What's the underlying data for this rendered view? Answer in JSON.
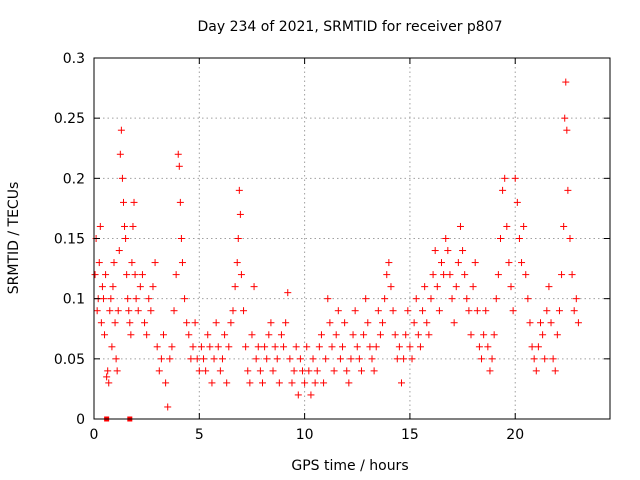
{
  "chart_data": {
    "type": "scatter",
    "title": "Day 234 of 2021, SRMTID for receiver p807",
    "xlabel": "GPS time / hours",
    "ylabel": "SRMTID / TECUs",
    "xlim": [
      0,
      24.5
    ],
    "ylim": [
      0,
      0.3
    ],
    "x_ticks": [
      0,
      5,
      10,
      15,
      20
    ],
    "x_tick_labels": [
      "0",
      "5",
      "10",
      "15",
      "20"
    ],
    "y_ticks": [
      0,
      0.05,
      0.1,
      0.15,
      0.2,
      0.25,
      0.3
    ],
    "y_tick_labels": [
      "0",
      "0.05",
      "0.1",
      "0.15",
      "0.2",
      "0.25",
      "0.3"
    ],
    "grid": true,
    "marker": "plus",
    "color": "#ff0000",
    "series": [
      {
        "name": "SRMTID",
        "points": [
          [
            0.05,
            0.12
          ],
          [
            0.1,
            0.15
          ],
          [
            0.15,
            0.09
          ],
          [
            0.2,
            0.1
          ],
          [
            0.25,
            0.13
          ],
          [
            0.3,
            0.16
          ],
          [
            0.35,
            0.08
          ],
          [
            0.4,
            0.11
          ],
          [
            0.45,
            0.1
          ],
          [
            0.5,
            0.07
          ],
          [
            0.55,
            0.12
          ],
          [
            0.6,
            0.035
          ],
          [
            0.65,
            0.04
          ],
          [
            0.7,
            0.03
          ],
          [
            0.75,
            0.09
          ],
          [
            0.8,
            0.1
          ],
          [
            0.85,
            0.06
          ],
          [
            0.9,
            0.11
          ],
          [
            0.95,
            0.13
          ],
          [
            1.0,
            0.08
          ],
          [
            1.05,
            0.05
          ],
          [
            1.1,
            0.04
          ],
          [
            1.15,
            0.09
          ],
          [
            1.2,
            0.14
          ],
          [
            1.25,
            0.22
          ],
          [
            1.3,
            0.24
          ],
          [
            1.35,
            0.2
          ],
          [
            1.4,
            0.18
          ],
          [
            1.45,
            0.16
          ],
          [
            1.5,
            0.15
          ],
          [
            1.55,
            0.12
          ],
          [
            1.6,
            0.1
          ],
          [
            1.65,
            0.09
          ],
          [
            1.7,
            0.08
          ],
          [
            1.75,
            0.07
          ],
          [
            1.8,
            0.13
          ],
          [
            1.85,
            0.16
          ],
          [
            1.9,
            0.18
          ],
          [
            1.95,
            0.12
          ],
          [
            2.0,
            0.1
          ],
          [
            2.1,
            0.09
          ],
          [
            2.2,
            0.11
          ],
          [
            2.3,
            0.12
          ],
          [
            2.4,
            0.08
          ],
          [
            2.5,
            0.07
          ],
          [
            2.6,
            0.1
          ],
          [
            2.7,
            0.09
          ],
          [
            2.8,
            0.11
          ],
          [
            2.9,
            0.13
          ],
          [
            3.0,
            0.06
          ],
          [
            3.1,
            0.04
          ],
          [
            3.2,
            0.05
          ],
          [
            3.3,
            0.07
          ],
          [
            3.4,
            0.03
          ],
          [
            3.5,
            0.01
          ],
          [
            3.6,
            0.05
          ],
          [
            3.7,
            0.06
          ],
          [
            3.8,
            0.09
          ],
          [
            3.9,
            0.12
          ],
          [
            4.0,
            0.22
          ],
          [
            4.05,
            0.21
          ],
          [
            4.1,
            0.18
          ],
          [
            4.15,
            0.15
          ],
          [
            4.2,
            0.13
          ],
          [
            4.3,
            0.1
          ],
          [
            4.4,
            0.08
          ],
          [
            4.5,
            0.07
          ],
          [
            4.6,
            0.05
          ],
          [
            4.7,
            0.06
          ],
          [
            4.8,
            0.08
          ],
          [
            4.9,
            0.05
          ],
          [
            5.0,
            0.04
          ],
          [
            5.1,
            0.06
          ],
          [
            5.2,
            0.05
          ],
          [
            5.3,
            0.04
          ],
          [
            5.4,
            0.07
          ],
          [
            5.5,
            0.06
          ],
          [
            5.6,
            0.03
          ],
          [
            5.7,
            0.05
          ],
          [
            5.8,
            0.08
          ],
          [
            5.9,
            0.06
          ],
          [
            6.0,
            0.04
          ],
          [
            6.1,
            0.05
          ],
          [
            6.2,
            0.07
          ],
          [
            6.3,
            0.03
          ],
          [
            6.4,
            0.06
          ],
          [
            6.5,
            0.08
          ],
          [
            6.6,
            0.09
          ],
          [
            6.7,
            0.11
          ],
          [
            6.8,
            0.13
          ],
          [
            6.85,
            0.15
          ],
          [
            6.9,
            0.19
          ],
          [
            6.95,
            0.17
          ],
          [
            7.0,
            0.12
          ],
          [
            7.1,
            0.09
          ],
          [
            7.2,
            0.06
          ],
          [
            7.3,
            0.04
          ],
          [
            7.4,
            0.03
          ],
          [
            7.5,
            0.07
          ],
          [
            7.6,
            0.11
          ],
          [
            7.7,
            0.05
          ],
          [
            7.8,
            0.06
          ],
          [
            7.9,
            0.04
          ],
          [
            8.0,
            0.03
          ],
          [
            8.1,
            0.06
          ],
          [
            8.2,
            0.05
          ],
          [
            8.3,
            0.07
          ],
          [
            8.4,
            0.08
          ],
          [
            8.5,
            0.04
          ],
          [
            8.6,
            0.06
          ],
          [
            8.7,
            0.05
          ],
          [
            8.8,
            0.03
          ],
          [
            8.9,
            0.07
          ],
          [
            9.0,
            0.06
          ],
          [
            9.1,
            0.08
          ],
          [
            9.2,
            0.105
          ],
          [
            9.3,
            0.05
          ],
          [
            9.4,
            0.03
          ],
          [
            9.5,
            0.04
          ],
          [
            9.6,
            0.06
          ],
          [
            9.7,
            0.02
          ],
          [
            9.8,
            0.05
          ],
          [
            9.9,
            0.04
          ],
          [
            10.0,
            0.03
          ],
          [
            10.1,
            0.06
          ],
          [
            10.2,
            0.04
          ],
          [
            10.3,
            0.02
          ],
          [
            10.4,
            0.05
          ],
          [
            10.5,
            0.03
          ],
          [
            10.6,
            0.04
          ],
          [
            10.7,
            0.06
          ],
          [
            10.8,
            0.07
          ],
          [
            10.9,
            0.03
          ],
          [
            11.0,
            0.05
          ],
          [
            11.1,
            0.1
          ],
          [
            11.2,
            0.08
          ],
          [
            11.3,
            0.06
          ],
          [
            11.4,
            0.04
          ],
          [
            11.5,
            0.07
          ],
          [
            11.6,
            0.09
          ],
          [
            11.7,
            0.05
          ],
          [
            11.8,
            0.06
          ],
          [
            11.9,
            0.08
          ],
          [
            12.0,
            0.04
          ],
          [
            12.1,
            0.03
          ],
          [
            12.2,
            0.05
          ],
          [
            12.3,
            0.07
          ],
          [
            12.4,
            0.09
          ],
          [
            12.5,
            0.06
          ],
          [
            12.6,
            0.05
          ],
          [
            12.7,
            0.04
          ],
          [
            12.8,
            0.07
          ],
          [
            12.9,
            0.1
          ],
          [
            13.0,
            0.08
          ],
          [
            13.1,
            0.06
          ],
          [
            13.2,
            0.05
          ],
          [
            13.3,
            0.04
          ],
          [
            13.4,
            0.06
          ],
          [
            13.5,
            0.09
          ],
          [
            13.6,
            0.07
          ],
          [
            13.7,
            0.08
          ],
          [
            13.8,
            0.1
          ],
          [
            13.9,
            0.12
          ],
          [
            14.0,
            0.13
          ],
          [
            14.1,
            0.11
          ],
          [
            14.2,
            0.09
          ],
          [
            14.3,
            0.07
          ],
          [
            14.4,
            0.05
          ],
          [
            14.5,
            0.06
          ],
          [
            14.6,
            0.03
          ],
          [
            14.7,
            0.05
          ],
          [
            14.8,
            0.07
          ],
          [
            14.9,
            0.09
          ],
          [
            15.0,
            0.06
          ],
          [
            15.1,
            0.05
          ],
          [
            15.2,
            0.08
          ],
          [
            15.3,
            0.1
          ],
          [
            15.4,
            0.07
          ],
          [
            15.5,
            0.06
          ],
          [
            15.6,
            0.09
          ],
          [
            15.7,
            0.11
          ],
          [
            15.8,
            0.08
          ],
          [
            15.9,
            0.07
          ],
          [
            16.0,
            0.1
          ],
          [
            16.1,
            0.12
          ],
          [
            16.2,
            0.14
          ],
          [
            16.3,
            0.11
          ],
          [
            16.4,
            0.09
          ],
          [
            16.5,
            0.13
          ],
          [
            16.6,
            0.12
          ],
          [
            16.7,
            0.15
          ],
          [
            16.8,
            0.14
          ],
          [
            16.9,
            0.12
          ],
          [
            17.0,
            0.1
          ],
          [
            17.1,
            0.08
          ],
          [
            17.2,
            0.11
          ],
          [
            17.3,
            0.13
          ],
          [
            17.4,
            0.16
          ],
          [
            17.5,
            0.14
          ],
          [
            17.6,
            0.12
          ],
          [
            17.7,
            0.1
          ],
          [
            17.8,
            0.09
          ],
          [
            17.9,
            0.07
          ],
          [
            18.0,
            0.11
          ],
          [
            18.1,
            0.13
          ],
          [
            18.2,
            0.09
          ],
          [
            18.3,
            0.06
          ],
          [
            18.4,
            0.05
          ],
          [
            18.5,
            0.07
          ],
          [
            18.6,
            0.09
          ],
          [
            18.7,
            0.06
          ],
          [
            18.8,
            0.04
          ],
          [
            18.9,
            0.05
          ],
          [
            19.0,
            0.07
          ],
          [
            19.1,
            0.1
          ],
          [
            19.2,
            0.12
          ],
          [
            19.3,
            0.15
          ],
          [
            19.4,
            0.19
          ],
          [
            19.5,
            0.2
          ],
          [
            19.6,
            0.16
          ],
          [
            19.7,
            0.13
          ],
          [
            19.8,
            0.11
          ],
          [
            19.9,
            0.09
          ],
          [
            20.0,
            0.2
          ],
          [
            20.1,
            0.18
          ],
          [
            20.2,
            0.15
          ],
          [
            20.3,
            0.13
          ],
          [
            20.4,
            0.16
          ],
          [
            20.5,
            0.12
          ],
          [
            20.6,
            0.1
          ],
          [
            20.7,
            0.08
          ],
          [
            20.8,
            0.06
          ],
          [
            20.9,
            0.05
          ],
          [
            21.0,
            0.04
          ],
          [
            21.1,
            0.06
          ],
          [
            21.2,
            0.08
          ],
          [
            21.3,
            0.07
          ],
          [
            21.4,
            0.05
          ],
          [
            21.5,
            0.09
          ],
          [
            21.6,
            0.11
          ],
          [
            21.7,
            0.08
          ],
          [
            21.8,
            0.05
          ],
          [
            21.9,
            0.04
          ],
          [
            22.0,
            0.07
          ],
          [
            22.1,
            0.09
          ],
          [
            22.2,
            0.12
          ],
          [
            22.3,
            0.16
          ],
          [
            22.35,
            0.25
          ],
          [
            22.4,
            0.28
          ],
          [
            22.45,
            0.24
          ],
          [
            22.5,
            0.19
          ],
          [
            22.6,
            0.15
          ],
          [
            22.7,
            0.12
          ],
          [
            22.8,
            0.09
          ],
          [
            22.9,
            0.1
          ],
          [
            23.0,
            0.08
          ]
        ]
      }
    ],
    "zero_markers": [
      0.6,
      1.7
    ]
  }
}
